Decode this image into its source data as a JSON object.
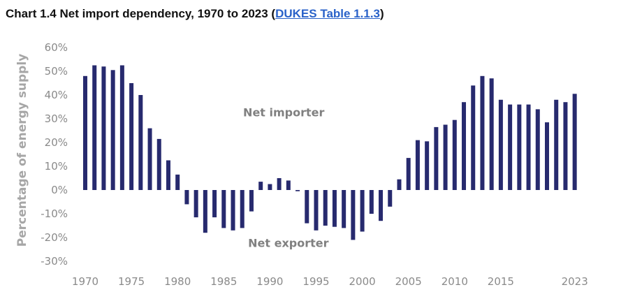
{
  "header": {
    "title_prefix": "Chart 1.4 Net import dependency, 1970 to 2023 (",
    "link_text": "DUKES Table 1.1.3",
    "title_suffix": ")"
  },
  "colors": {
    "bar": "#272a6e",
    "link": "#2a62c9",
    "tick": "#8a8a8a"
  },
  "chart_data": {
    "type": "bar",
    "ylabel": "Percentage of energy supply",
    "ylim": [
      -30,
      60
    ],
    "y_ticks": [
      60,
      50,
      40,
      30,
      20,
      10,
      0,
      -10,
      -20,
      -30
    ],
    "y_tick_labels": [
      "60%",
      "50%",
      "40%",
      "30%",
      "20%",
      "10%",
      "0%",
      "-10%",
      "-20%",
      "-30%"
    ],
    "x_tick_labels": [
      "1970",
      "1975",
      "1980",
      "1985",
      "1990",
      "1995",
      "2000",
      "2005",
      "2010",
      "2015",
      "2023"
    ],
    "x_tick_years": [
      1970,
      1975,
      1980,
      1985,
      1990,
      1995,
      2000,
      2005,
      2010,
      2015,
      2023
    ],
    "annotations": [
      {
        "text": "Net importer",
        "year": 1991.5,
        "value": 31
      },
      {
        "text": "Net exporter",
        "year": 1992,
        "value": -24
      }
    ],
    "years": [
      1970,
      1971,
      1972,
      1973,
      1974,
      1975,
      1976,
      1977,
      1978,
      1979,
      1980,
      1981,
      1982,
      1983,
      1984,
      1985,
      1986,
      1987,
      1988,
      1989,
      1990,
      1991,
      1992,
      1993,
      1994,
      1995,
      1996,
      1997,
      1998,
      1999,
      2000,
      2001,
      2002,
      2003,
      2004,
      2005,
      2006,
      2007,
      2008,
      2009,
      2010,
      2011,
      2012,
      2013,
      2014,
      2015,
      2016,
      2017,
      2018,
      2019,
      2020,
      2021,
      2022,
      2023
    ],
    "values": [
      48,
      52.5,
      52,
      50.5,
      52.5,
      45,
      40,
      26,
      21.5,
      12.5,
      6.5,
      -6,
      -11.5,
      -18,
      -11.5,
      -16,
      -17,
      -16,
      -9,
      3.5,
      2.5,
      5,
      4,
      -0.5,
      -14,
      -17,
      -15,
      -15.5,
      -16,
      -21,
      -17.5,
      -10,
      -13,
      -7,
      4.5,
      13.5,
      21,
      20.5,
      26.5,
      27.5,
      29.5,
      37,
      44,
      48,
      47,
      38,
      36,
      36,
      36,
      34,
      28.5,
      38,
      37,
      40.5
    ]
  }
}
